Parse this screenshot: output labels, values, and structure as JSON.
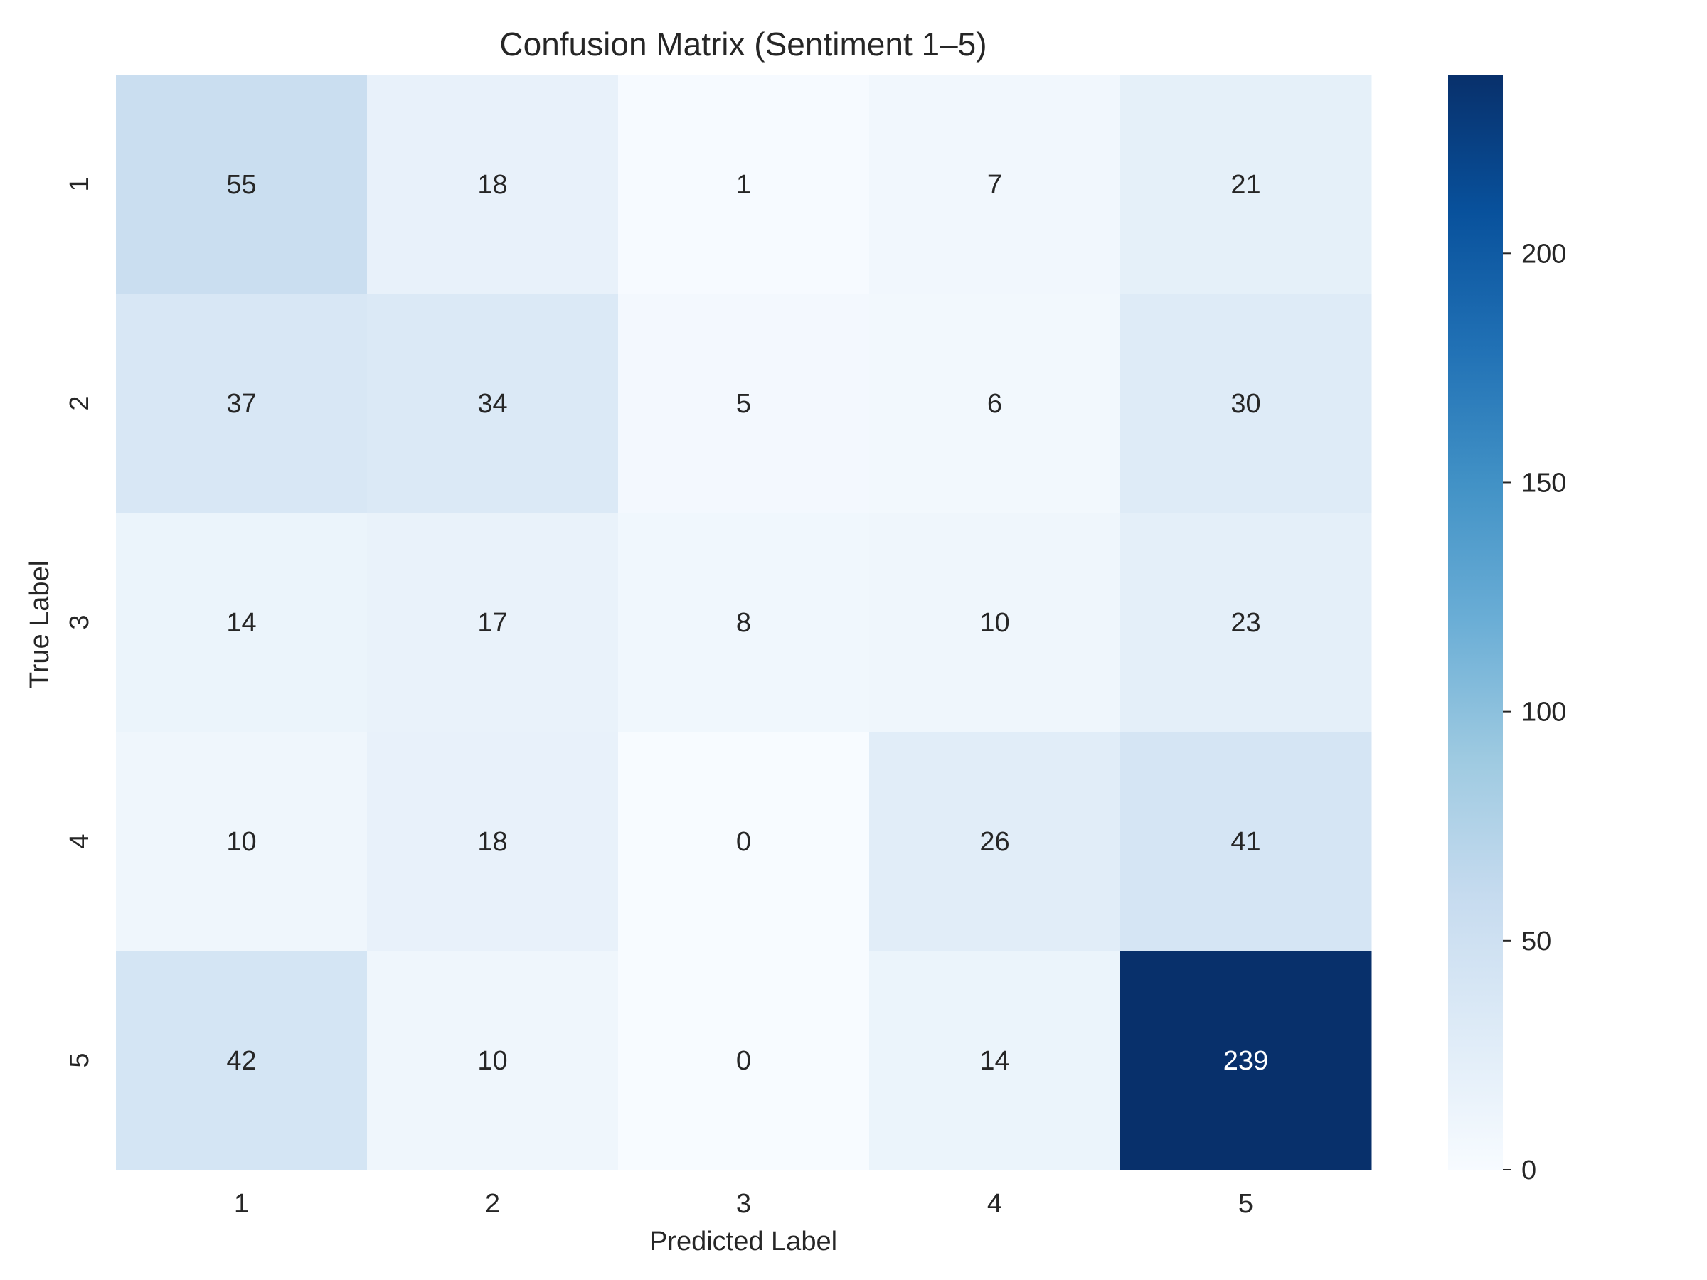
{
  "chart_data": {
    "type": "heatmap",
    "title": "Confusion Matrix (Sentiment 1–5)",
    "xlabel": "Predicted Label",
    "ylabel": "True Label",
    "x_categories": [
      "1",
      "2",
      "3",
      "4",
      "5"
    ],
    "y_categories": [
      "1",
      "2",
      "3",
      "4",
      "5"
    ],
    "values": [
      [
        55,
        18,
        1,
        7,
        21
      ],
      [
        37,
        34,
        5,
        6,
        30
      ],
      [
        14,
        17,
        8,
        10,
        23
      ],
      [
        10,
        18,
        0,
        26,
        41
      ],
      [
        42,
        10,
        0,
        14,
        239
      ]
    ],
    "colormap": "Blues",
    "color_range": [
      0,
      239
    ],
    "colorbar_ticks": [
      "0",
      "50",
      "100",
      "150",
      "200"
    ],
    "colorbar_tick_values": [
      0,
      50,
      100,
      150,
      200
    ],
    "grid": false
  }
}
